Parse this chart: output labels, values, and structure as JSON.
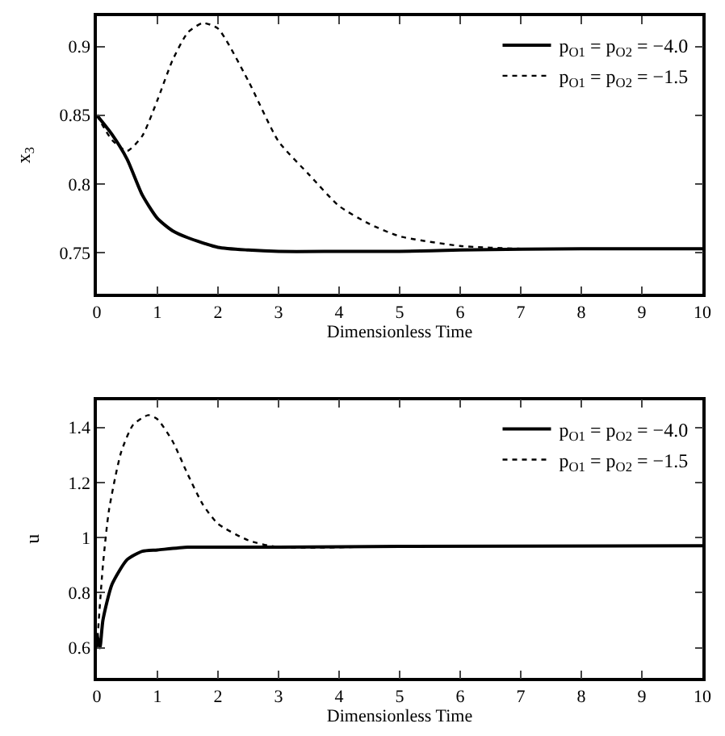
{
  "chart_data": [
    {
      "type": "line",
      "xlabel": "Dimensionless Time",
      "ylabel": "x$_{3}$",
      "xlim": [
        0,
        10
      ],
      "xticks": [
        0,
        1,
        2,
        3,
        4,
        5,
        6,
        7,
        8,
        9,
        10
      ],
      "ylim": [
        0.72,
        0.922
      ],
      "yticks": [
        0.75,
        0.8,
        0.85,
        0.9
      ],
      "legend": "top right",
      "marker": "none",
      "series": [
        {
          "name": "p$_{O1}$ = p$_{O2}$ = −4.0",
          "color": "#000000",
          "line_style": "solid",
          "x": [
            0,
            0.25,
            0.5,
            0.75,
            1,
            1.25,
            1.5,
            2,
            2.5,
            3,
            4,
            5,
            6,
            8,
            10
          ],
          "values": [
            0.85,
            0.836,
            0.818,
            0.792,
            0.775,
            0.766,
            0.761,
            0.754,
            0.752,
            0.751,
            0.751,
            0.751,
            0.752,
            0.753,
            0.753
          ]
        },
        {
          "name": "p$_{O1}$ = p$_{O2}$ = −1.5",
          "color": "#000000",
          "line_style": "dotted",
          "x": [
            0,
            0.25,
            0.5,
            0.75,
            1,
            1.25,
            1.5,
            1.75,
            2,
            2.5,
            3,
            3.5,
            4,
            4.5,
            5,
            6,
            7,
            8,
            10
          ],
          "values": [
            0.85,
            0.832,
            0.824,
            0.835,
            0.861,
            0.89,
            0.91,
            0.917,
            0.913,
            0.875,
            0.831,
            0.807,
            0.784,
            0.771,
            0.762,
            0.755,
            0.753,
            0.753,
            0.753
          ]
        }
      ]
    },
    {
      "type": "line",
      "xlabel": "Dimensionless Time",
      "ylabel": "u",
      "xlim": [
        0,
        10
      ],
      "xticks": [
        0,
        1,
        2,
        3,
        4,
        5,
        6,
        7,
        8,
        9,
        10
      ],
      "ylim": [
        0.49,
        1.5
      ],
      "yticks": [
        0.6,
        0.8,
        1,
        1.2,
        1.4
      ],
      "legend": "top right",
      "marker": "none",
      "series": [
        {
          "name": "p$_{O1}$ = p$_{O2}$ = −4.0",
          "color": "#000000",
          "line_style": "solid",
          "x": [
            0,
            0.05,
            0.1,
            0.25,
            0.5,
            0.75,
            1,
            1.5,
            2,
            3,
            5,
            10
          ],
          "values": [
            0.65,
            0.6,
            0.7,
            0.83,
            0.92,
            0.95,
            0.955,
            0.965,
            0.965,
            0.965,
            0.968,
            0.97
          ]
        },
        {
          "name": "p$_{O1}$ = p$_{O2}$ = −1.5",
          "color": "#000000",
          "line_style": "dotted",
          "x": [
            0,
            0.1,
            0.2,
            0.4,
            0.6,
            0.85,
            1,
            1.25,
            1.5,
            1.75,
            2,
            2.5,
            3,
            5,
            10
          ],
          "values": [
            0.6,
            0.9,
            1.1,
            1.31,
            1.41,
            1.445,
            1.43,
            1.35,
            1.23,
            1.12,
            1.05,
            0.99,
            0.965,
            0.968,
            0.97
          ]
        }
      ]
    }
  ]
}
